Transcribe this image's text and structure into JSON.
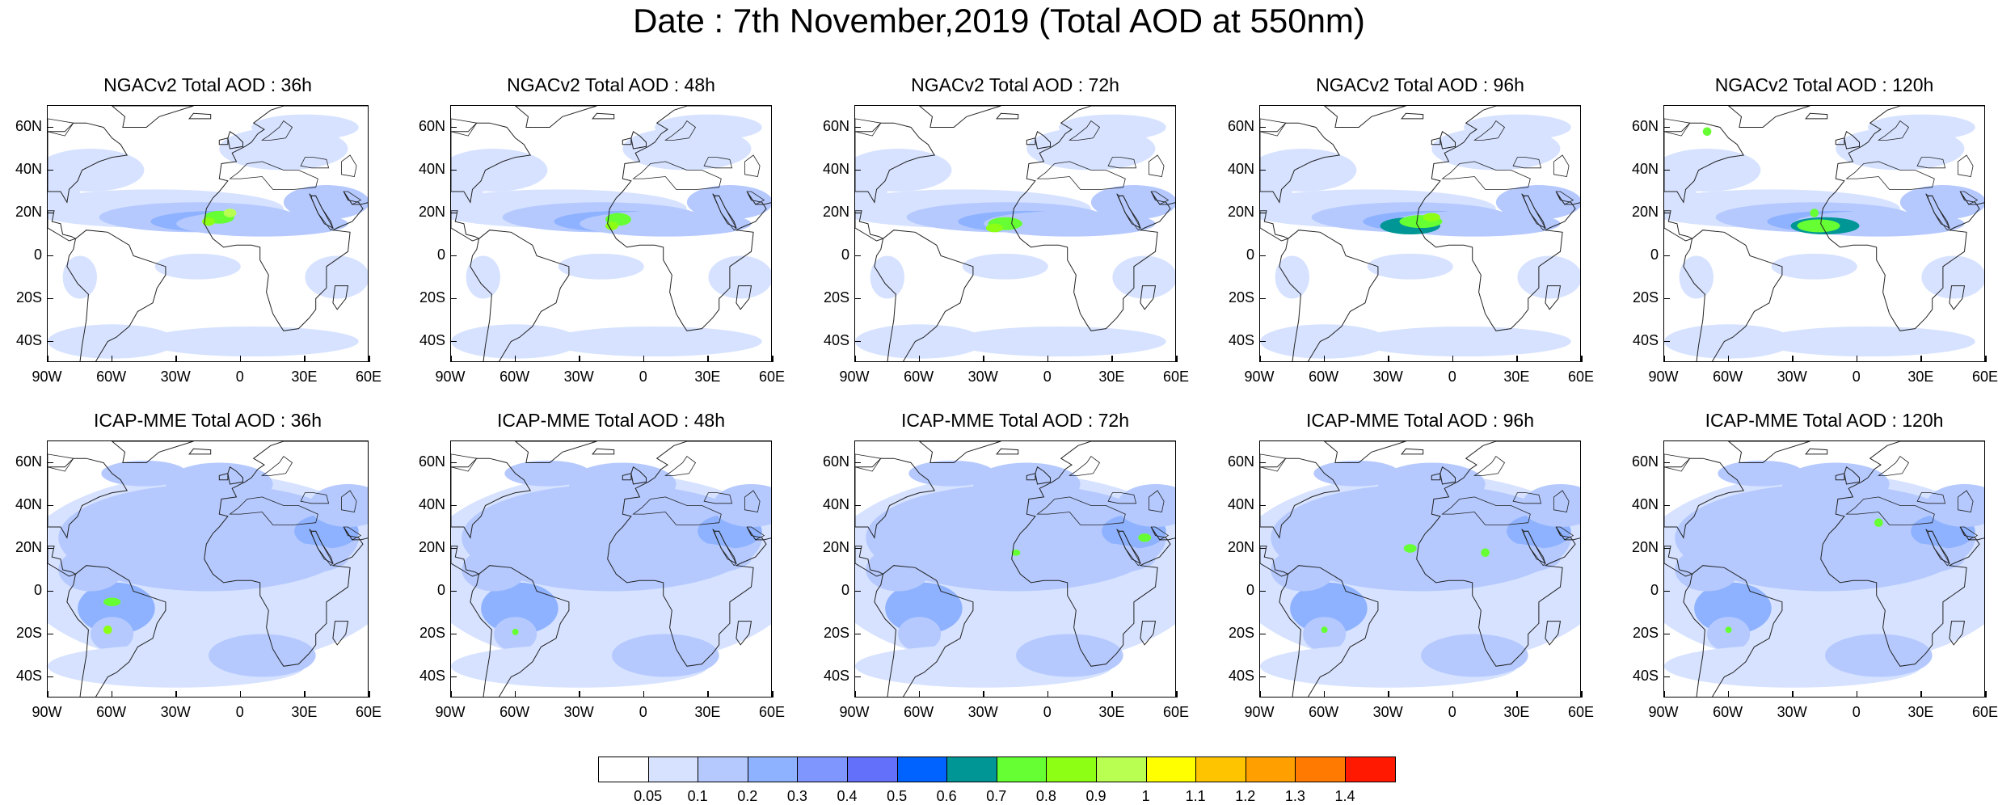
{
  "title": "Date : 7th November,2019 (Total AOD at 550nm)",
  "panels": [
    {
      "title": "NGACv2 Total AOD : 36h"
    },
    {
      "title": "NGACv2 Total AOD : 48h"
    },
    {
      "title": "NGACv2 Total AOD : 72h"
    },
    {
      "title": "NGACv2 Total AOD : 96h"
    },
    {
      "title": "NGACv2 Total AOD : 120h"
    },
    {
      "title": "ICAP-MME Total AOD : 36h"
    },
    {
      "title": "ICAP-MME Total AOD : 48h"
    },
    {
      "title": "ICAP-MME Total AOD : 72h"
    },
    {
      "title": "ICAP-MME Total AOD : 96h"
    },
    {
      "title": "ICAP-MME Total AOD : 120h"
    }
  ],
  "lat_ticks": [
    "60N",
    "40N",
    "20N",
    "0",
    "20S",
    "40S"
  ],
  "lon_ticks": [
    "90W",
    "60W",
    "30W",
    "0",
    "30E",
    "60E"
  ],
  "map_extent": {
    "lon": [
      -90,
      60
    ],
    "lat": [
      -50,
      70
    ]
  },
  "lat_values": [
    60,
    40,
    20,
    0,
    -20,
    -40
  ],
  "lon_values": [
    -90,
    -60,
    -30,
    0,
    30,
    60
  ],
  "colorbar": {
    "labels": [
      "0.05",
      "0.1",
      "0.2",
      "0.3",
      "0.4",
      "0.5",
      "0.6",
      "0.7",
      "0.8",
      "0.9",
      "1",
      "1.1",
      "1.2",
      "1.3",
      "1.4"
    ],
    "colors": [
      "#ffffff",
      "#d6e2ff",
      "#b5c9ff",
      "#8eb2ff",
      "#7f96ff",
      "#6370f9",
      "#0063ff",
      "#009696",
      "#66ff33",
      "#8cff14",
      "#b8ff52",
      "#ffff00",
      "#ffc400",
      "#ffa000",
      "#ff7a00",
      "#ff1900"
    ]
  }
}
